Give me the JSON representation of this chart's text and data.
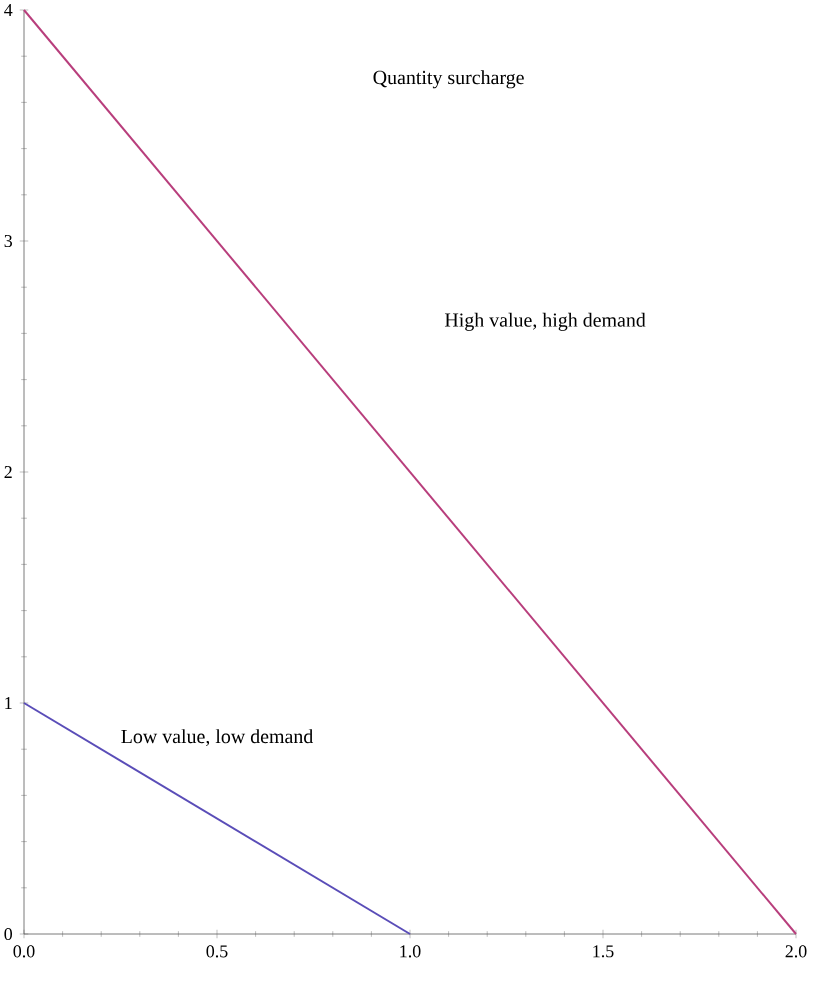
{
  "chart_data": {
    "type": "line",
    "x": [
      0,
      2
    ],
    "series": [
      {
        "color": "#b83e7c",
        "values": [
          4,
          0
        ]
      },
      {
        "color": "#5a4db8",
        "x": [
          0,
          1
        ],
        "values": [
          1,
          0
        ]
      }
    ],
    "xlim": [
      0,
      2
    ],
    "ylim": [
      0,
      4
    ],
    "xticks": [
      {
        "value": 0,
        "label": "0.0"
      },
      {
        "value": 0.5,
        "label": "0.5"
      },
      {
        "value": 1,
        "label": "1.0"
      },
      {
        "value": 1.5,
        "label": "1.5"
      },
      {
        "value": 2,
        "label": "2.0"
      }
    ],
    "yticks": [
      0,
      1,
      2,
      3,
      4
    ],
    "annotations": [
      "Quantity surcharge",
      "High value, high demand",
      "Low value, low demand"
    ],
    "grid": false,
    "marker": "none",
    "line_style": "solid"
  }
}
